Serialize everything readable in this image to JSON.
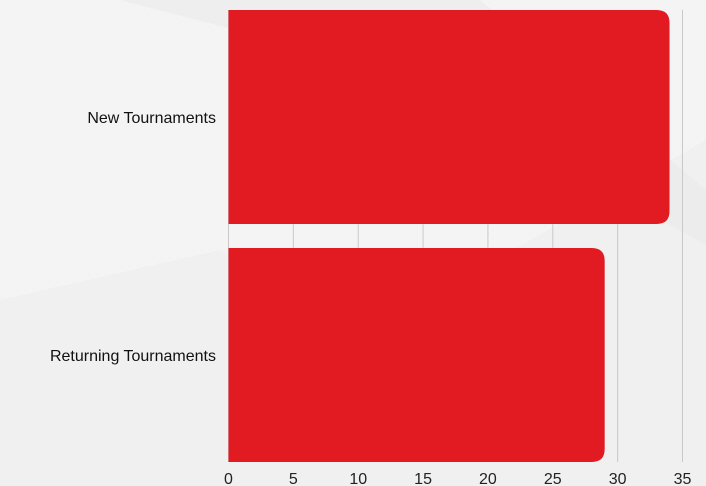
{
  "chart_data": {
    "type": "bar",
    "orientation": "horizontal",
    "categories": [
      "New Tournaments",
      "Returning Tournaments"
    ],
    "values": [
      34,
      29
    ],
    "xlim": [
      0,
      35
    ],
    "xticks": [
      0,
      5,
      10,
      15,
      20,
      25,
      30,
      35
    ],
    "grid": "vertical",
    "bar_color": "#e21b23",
    "background_color": "#f3f3f3",
    "title": "",
    "xlabel": "",
    "ylabel": ""
  }
}
